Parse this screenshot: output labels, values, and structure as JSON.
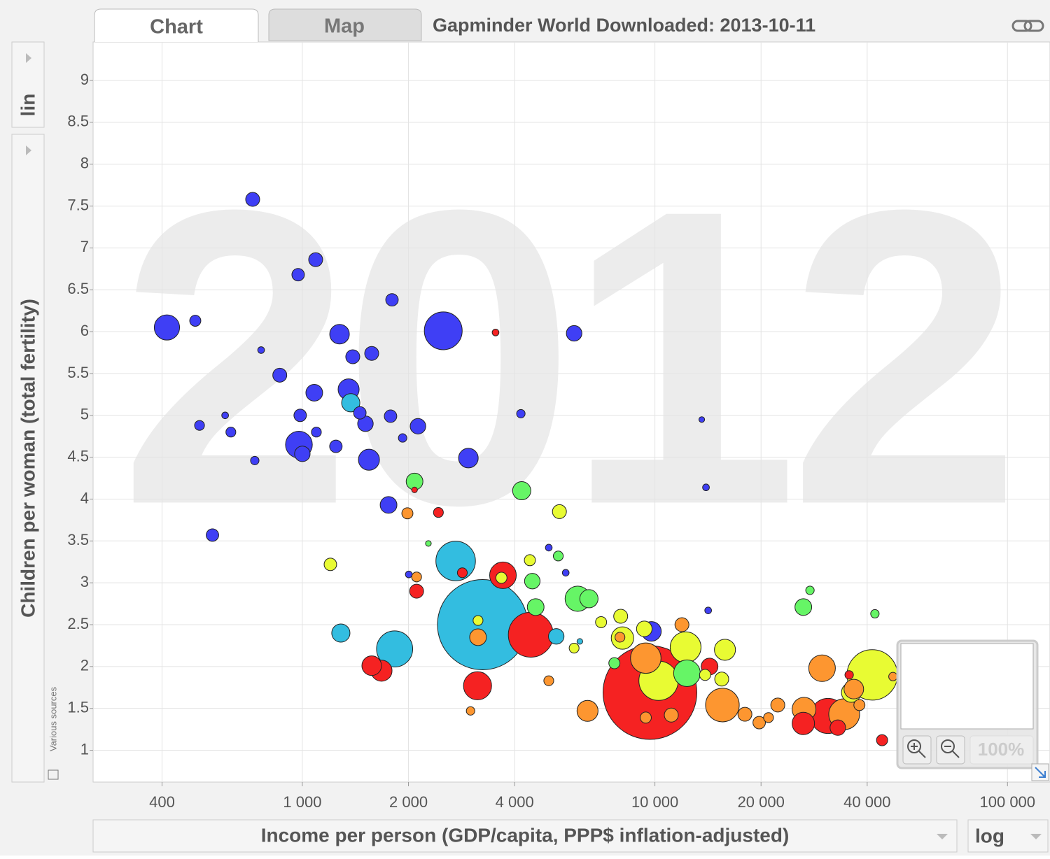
{
  "chart_data": {
    "type": "bubble",
    "tabs": [
      "Chart",
      "Map"
    ],
    "title": "Gapminder World Downloaded: 2013-10-11",
    "year_label": "2012",
    "ylabel": "Children per woman (total fertility)",
    "xlabel": "Income per person (GDP/capita, PPP$ inflation-adjusted)",
    "yscale": "lin",
    "xscale": "log",
    "source_note": "Various sources",
    "zoom_label": "100%",
    "grid": true,
    "xlim": [
      255,
      132000
    ],
    "ylim": [
      0.62,
      9.46
    ],
    "xticks": [
      400,
      {
        "value": 1000,
        "label": "1 000"
      },
      {
        "value": 2000,
        "label": "2 000"
      },
      {
        "value": 4000,
        "label": "4 000"
      },
      {
        "value": 10000,
        "label": "10 000"
      },
      {
        "value": 20000,
        "label": "20 000"
      },
      {
        "value": 40000,
        "label": "40 000"
      },
      {
        "value": 100000,
        "label": "100 000"
      }
    ],
    "yticks": [
      1,
      1.5,
      2,
      2.5,
      3,
      3.5,
      4,
      4.5,
      5,
      5.5,
      6,
      6.5,
      7,
      7.5,
      8,
      8.5,
      9
    ],
    "series": [
      {
        "color": "#3f3ff5",
        "x": [
          413,
          497,
          723,
          973,
          1091,
          764,
          863,
          1275,
          1390,
          1573,
          1796,
          2510,
          5900,
          1081,
          1353,
          986,
          978,
          1000,
          1096,
          1245,
          1456,
          1510,
          1545,
          1779,
          2128,
          1925,
          1756,
          2958,
          4167,
          511,
          604,
          627,
          733,
          556,
          13580,
          13960,
          9775,
          2004,
          14160,
          5585,
          5000
        ],
        "values": [
          6.05,
          6.13,
          7.58,
          6.68,
          6.86,
          5.78,
          5.48,
          5.97,
          5.7,
          5.74,
          6.38,
          6.01,
          5.98,
          5.27,
          5.31,
          5.0,
          4.65,
          4.54,
          4.8,
          4.63,
          5.03,
          4.9,
          4.47,
          4.99,
          4.87,
          4.73,
          3.93,
          4.49,
          5.02,
          4.88,
          5.0,
          4.8,
          4.46,
          3.57,
          4.95,
          4.14,
          2.42,
          3.1,
          2.67,
          3.12,
          3.42
        ],
        "sizes": [
          98,
          19,
          30,
          24,
          30,
          7,
          30,
          59,
          30,
          30,
          24,
          220,
          37,
          43,
          68,
          24,
          110,
          37,
          15,
          24,
          24,
          37,
          68,
          24,
          37,
          11,
          43,
          59,
          11,
          15,
          7,
          15,
          11,
          24,
          5,
          7,
          59,
          7,
          7,
          7,
          7
        ]
      },
      {
        "color": "#33bde0",
        "x": [
          2722,
          3245,
          1827,
          1286,
          1372,
          5250,
          6125
        ],
        "values": [
          3.26,
          2.5,
          2.21,
          2.4,
          5.15,
          2.36,
          2.3
        ],
        "sizes": [
          240,
          1250,
          200,
          51,
          51,
          37,
          5
        ]
      },
      {
        "color": "#f52222",
        "x": [
          9680,
          4446,
          3707,
          3140,
          1573,
          1677,
          2109,
          2432,
          3532,
          2843,
          14290,
          26360,
          30970,
          33020,
          44090,
          35560,
          2081
        ],
        "values": [
          1.69,
          2.38,
          3.09,
          1.77,
          2.01,
          1.95,
          2.9,
          3.84,
          5.99,
          3.12,
          2.0,
          1.32,
          1.41,
          1.27,
          1.12,
          1.9,
          4.11
        ],
        "sizes": [
          1350,
          310,
          109,
          121,
          59,
          68,
          30,
          15,
          7,
          15,
          43,
          77,
          190,
          37,
          19,
          11,
          5
        ]
      },
      {
        "color": "#66f566",
        "x": [
          2081,
          4190,
          4490,
          4590,
          5320,
          6040,
          6500,
          12330,
          26360,
          27530,
          42070,
          2278,
          7674
        ],
        "values": [
          4.21,
          4.1,
          3.02,
          2.71,
          3.32,
          2.81,
          2.81,
          1.92,
          2.71,
          2.91,
          2.63,
          3.47,
          2.04
        ],
        "sizes": [
          43,
          51,
          37,
          43,
          15,
          98,
          51,
          109,
          43,
          11,
          11,
          5,
          19
        ]
      },
      {
        "color": "#e8fb33",
        "x": [
          41340,
          10240,
          12220,
          15800,
          1201,
          5360,
          4420,
          7997,
          7036,
          8090,
          9330,
          3150,
          13880,
          3670,
          15470,
          5900,
          36050
        ],
        "values": [
          1.9,
          1.83,
          2.23,
          2.2,
          3.22,
          3.85,
          3.27,
          2.6,
          2.53,
          2.34,
          2.45,
          2.55,
          1.9,
          3.06,
          1.85,
          2.22,
          1.69
        ],
        "sizes": [
          390,
          237,
          146,
          68,
          24,
          30,
          19,
          30,
          19,
          77,
          37,
          15,
          19,
          19,
          30,
          15,
          59
        ]
      },
      {
        "color": "#fd9630",
        "x": [
          9420,
          11930,
          15540,
          6440,
          26480,
          29790,
          34420,
          36660,
          18000,
          22310,
          19760,
          11130,
          9420,
          3150,
          1986,
          2109,
          5000,
          3000,
          38020,
          47330,
          7960,
          21000
        ],
        "values": [
          2.1,
          2.5,
          1.54,
          1.47,
          1.49,
          1.98,
          1.43,
          1.73,
          1.43,
          1.54,
          1.33,
          1.42,
          1.39,
          2.35,
          3.83,
          3.07,
          1.83,
          1.47,
          1.54,
          1.88,
          2.35,
          1.39
        ],
        "sizes": [
          143,
          30,
          174,
          68,
          87,
          109,
          146,
          59,
          30,
          30,
          24,
          30,
          19,
          43,
          19,
          15,
          15,
          11,
          19,
          11,
          15,
          15
        ]
      }
    ]
  }
}
